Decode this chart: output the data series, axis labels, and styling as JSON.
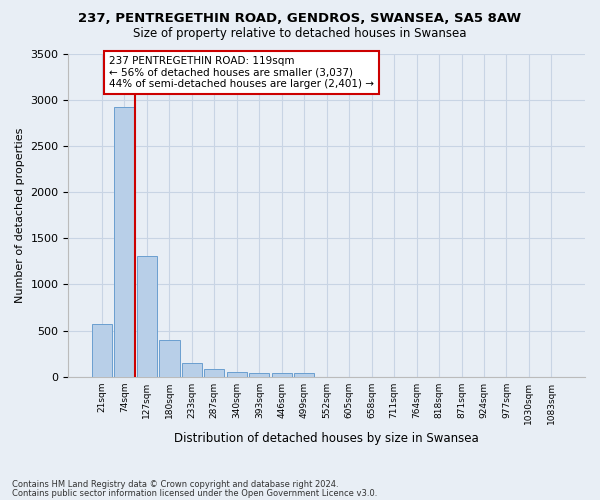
{
  "title1": "237, PENTREGETHIN ROAD, GENDROS, SWANSEA, SA5 8AW",
  "title2": "Size of property relative to detached houses in Swansea",
  "xlabel": "Distribution of detached houses by size in Swansea",
  "ylabel": "Number of detached properties",
  "footer1": "Contains HM Land Registry data © Crown copyright and database right 2024.",
  "footer2": "Contains public sector information licensed under the Open Government Licence v3.0.",
  "bin_labels": [
    "21sqm",
    "74sqm",
    "127sqm",
    "180sqm",
    "233sqm",
    "287sqm",
    "340sqm",
    "393sqm",
    "446sqm",
    "499sqm",
    "552sqm",
    "605sqm",
    "658sqm",
    "711sqm",
    "764sqm",
    "818sqm",
    "871sqm",
    "924sqm",
    "977sqm",
    "1030sqm",
    "1083sqm"
  ],
  "bar_values": [
    570,
    2920,
    1310,
    400,
    150,
    80,
    55,
    45,
    40,
    35,
    0,
    0,
    0,
    0,
    0,
    0,
    0,
    0,
    0,
    0,
    0
  ],
  "bar_color": "#b8cfe8",
  "bar_edge_color": "#6a9fd0",
  "grid_color": "#c8d4e4",
  "vline_x": 1.45,
  "vline_color": "#cc0000",
  "annotation_text": "237 PENTREGETHIN ROAD: 119sqm\n← 56% of detached houses are smaller (3,037)\n44% of semi-detached houses are larger (2,401) →",
  "annotation_box_color": "#ffffff",
  "annotation_border_color": "#cc0000",
  "ylim": [
    0,
    3500
  ],
  "yticks": [
    0,
    500,
    1000,
    1500,
    2000,
    2500,
    3000,
    3500
  ],
  "background_color": "#e8eef5"
}
